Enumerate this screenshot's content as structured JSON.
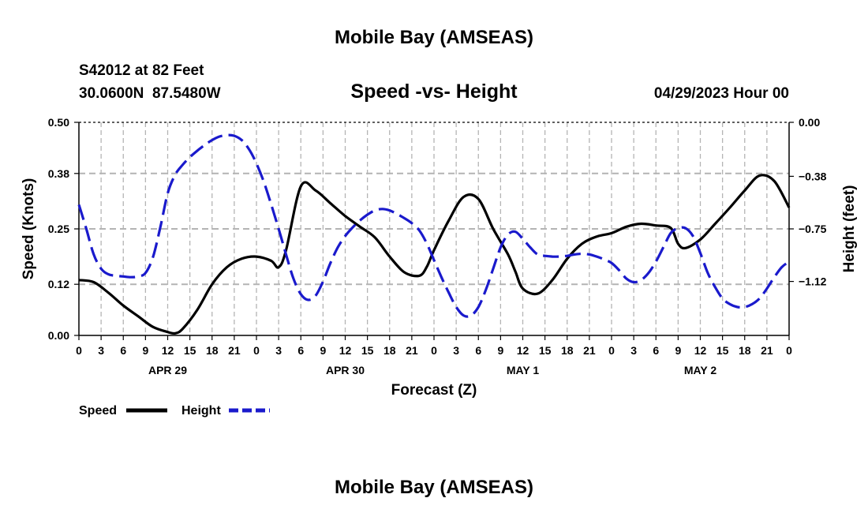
{
  "header": {
    "top_title": "Mobile Bay (AMSEAS)",
    "station": "S42012 at 82 Feet",
    "location": "30.0600N  87.5480W",
    "subtitle": "Speed -vs- Height",
    "datetime": "04/29/2023 Hour 00",
    "bottom_title": "Mobile Bay (AMSEAS)"
  },
  "colors": {
    "speed": "#000000",
    "height": "#1a1acc",
    "grid": "#b4b4b4"
  },
  "chart_data": {
    "type": "line",
    "xlabel": "Forecast (Z)",
    "ylabel_left": "Speed (Knots)",
    "ylabel_right": "Height (feet)",
    "x_unit": "hours from 04/29/2023 00Z",
    "xlim": [
      0,
      96
    ],
    "ylim_left": [
      0,
      0.5
    ],
    "ylim_right": [
      -1.5,
      0
    ],
    "y_ticks_left": [
      "0.00",
      "0.12",
      "0.25",
      "0.38",
      "0.50"
    ],
    "y_ticks_right": [
      "-1.12",
      "-0.75",
      "-0.38",
      "0.00"
    ],
    "x_tick_labels": [
      "0",
      "3",
      "6",
      "9",
      "12",
      "15",
      "18",
      "21",
      "0",
      "3",
      "6",
      "9",
      "12",
      "15",
      "18",
      "21",
      "0",
      "3",
      "6",
      "9",
      "12",
      "15",
      "18",
      "21",
      "0",
      "3",
      "6",
      "9",
      "12",
      "15",
      "18",
      "21",
      "0"
    ],
    "date_labels": [
      "APR 29",
      "APR 30",
      "MAY 1",
      "MAY 2"
    ],
    "grid": true,
    "legend_position": "bottom-left",
    "series": [
      {
        "name": "Speed",
        "axis": "left",
        "x": [
          0,
          2,
          4,
          6,
          8,
          10,
          12,
          13,
          14,
          16,
          18,
          20,
          22,
          24,
          26,
          27,
          28,
          30,
          32,
          34,
          36,
          38,
          40,
          42,
          44,
          46,
          47,
          48,
          50,
          52,
          54,
          56,
          58,
          59,
          60,
          62,
          64,
          66,
          68,
          70,
          72,
          74,
          76,
          78,
          80,
          81,
          82,
          84,
          86,
          88,
          90,
          92,
          94,
          96
        ],
        "values": [
          0.13,
          0.125,
          0.1,
          0.07,
          0.045,
          0.02,
          0.008,
          0.005,
          0.015,
          0.06,
          0.12,
          0.16,
          0.18,
          0.185,
          0.175,
          0.16,
          0.2,
          0.35,
          0.34,
          0.31,
          0.28,
          0.255,
          0.23,
          0.185,
          0.148,
          0.14,
          0.16,
          0.2,
          0.27,
          0.325,
          0.32,
          0.25,
          0.19,
          0.15,
          0.11,
          0.098,
          0.13,
          0.18,
          0.215,
          0.232,
          0.24,
          0.255,
          0.262,
          0.258,
          0.252,
          0.215,
          0.205,
          0.225,
          0.262,
          0.3,
          0.34,
          0.375,
          0.362,
          0.3
        ]
      },
      {
        "name": "Height",
        "axis": "right",
        "x": [
          0,
          1,
          2,
          3,
          4,
          5,
          6,
          7,
          8,
          9,
          10,
          11,
          12,
          13,
          14,
          15,
          16,
          17,
          18,
          19,
          20,
          21,
          22,
          23,
          24,
          25,
          26,
          27,
          28,
          29,
          30,
          31,
          32,
          33,
          34,
          35,
          36,
          37,
          38,
          39,
          40,
          41,
          42,
          43,
          44,
          45,
          46,
          47,
          48,
          49,
          50,
          51,
          52,
          53,
          54,
          55,
          56,
          57,
          58,
          59,
          60,
          61,
          62,
          63,
          64,
          65,
          66,
          67,
          68,
          69,
          70,
          71,
          72,
          73,
          74,
          75,
          76,
          77,
          78,
          79,
          80,
          81,
          82,
          83,
          84,
          85,
          86,
          87,
          88,
          89,
          90,
          91,
          92,
          93,
          94,
          95,
          96
        ],
        "values": [
          -0.58,
          -0.75,
          -0.93,
          -1.03,
          -1.07,
          -1.08,
          -1.085,
          -1.09,
          -1.085,
          -1.06,
          -0.95,
          -0.74,
          -0.5,
          -0.37,
          -0.3,
          -0.245,
          -0.2,
          -0.16,
          -0.125,
          -0.1,
          -0.09,
          -0.095,
          -0.125,
          -0.19,
          -0.29,
          -0.42,
          -0.58,
          -0.75,
          -0.93,
          -1.1,
          -1.21,
          -1.25,
          -1.22,
          -1.12,
          -0.99,
          -0.88,
          -0.8,
          -0.74,
          -0.69,
          -0.65,
          -0.62,
          -0.61,
          -0.62,
          -0.645,
          -0.675,
          -0.71,
          -0.76,
          -0.85,
          -0.97,
          -1.09,
          -1.2,
          -1.3,
          -1.36,
          -1.36,
          -1.3,
          -1.18,
          -1.03,
          -0.88,
          -0.79,
          -0.77,
          -0.82,
          -0.88,
          -0.93,
          -0.94,
          -0.945,
          -0.945,
          -0.94,
          -0.93,
          -0.925,
          -0.93,
          -0.945,
          -0.965,
          -0.99,
          -1.04,
          -1.1,
          -1.125,
          -1.11,
          -1.06,
          -0.98,
          -0.88,
          -0.78,
          -0.745,
          -0.745,
          -0.8,
          -0.92,
          -1.06,
          -1.16,
          -1.24,
          -1.28,
          -1.3,
          -1.3,
          -1.28,
          -1.24,
          -1.17,
          -1.09,
          -1.02,
          -0.98
        ]
      }
    ]
  }
}
